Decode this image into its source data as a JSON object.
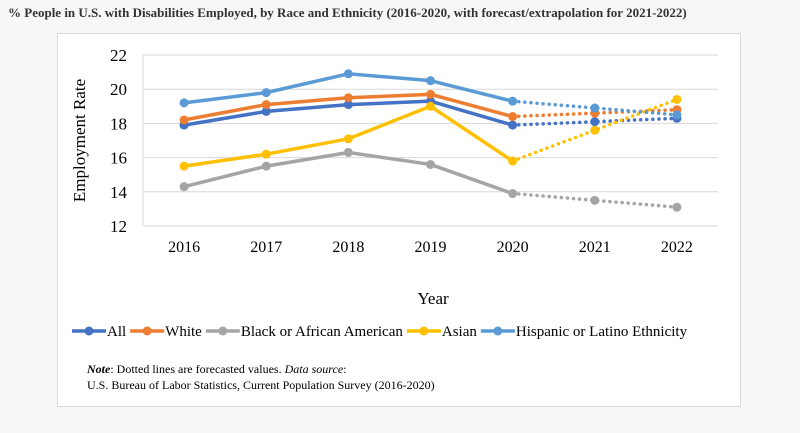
{
  "page": {
    "title": "% People in U.S. with Disabilities Employed, by Race and Ethnicity (2016-2020, with forecast/extrapolation for 2021-2022)"
  },
  "note": {
    "label": "Note",
    "text": ": Dotted lines are forecasted values. ",
    "source_label": "Data source",
    "source_colon": ":",
    "source": "U.S. Bureau of Labor Statistics, Current Population Survey (2016-2020)"
  },
  "chart_data": {
    "type": "line",
    "title": "% People in U.S. with Disabilities Employed, by Race and Ethnicity (2016-2020, with forecast/extrapolation for 2021-2022)",
    "xlabel": "Year",
    "ylabel": "Employment Rate",
    "x": [
      "2016",
      "2017",
      "2018",
      "2019",
      "2020",
      "2021",
      "2022"
    ],
    "ylim": [
      12,
      22
    ],
    "yticks": [
      12,
      14,
      16,
      18,
      20,
      22
    ],
    "grid": true,
    "legend_position": "bottom",
    "forecast_from_index": 4,
    "series": [
      {
        "name": "All",
        "color": "#4472c4",
        "values": [
          17.9,
          18.7,
          19.1,
          19.3,
          17.9,
          18.1,
          18.3
        ]
      },
      {
        "name": "White",
        "color": "#ed7d31",
        "values": [
          18.2,
          19.1,
          19.5,
          19.7,
          18.4,
          18.6,
          18.8
        ]
      },
      {
        "name": "Black or African American",
        "color": "#a5a5a5",
        "values": [
          14.3,
          15.5,
          16.3,
          15.6,
          13.9,
          13.5,
          13.1
        ]
      },
      {
        "name": "Asian",
        "color": "#ffc000",
        "values": [
          15.5,
          16.2,
          17.1,
          19.0,
          15.8,
          17.6,
          19.4
        ]
      },
      {
        "name": "Hispanic or Latino Ethnicity",
        "color": "#5b9bd5",
        "values": [
          19.2,
          19.8,
          20.9,
          20.5,
          19.3,
          18.9,
          18.5
        ]
      }
    ]
  }
}
